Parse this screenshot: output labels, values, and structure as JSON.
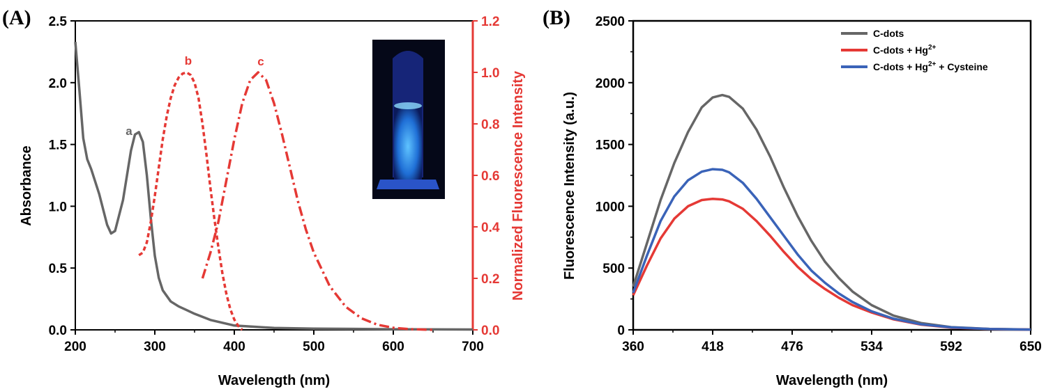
{
  "chart_data": [
    {
      "type": "line",
      "panel_label": "(A)",
      "xlabel": "Wavelength (nm)",
      "ylabel": "Absorbance",
      "y2label": "Normalized Fluorescence Intensity",
      "xlim": [
        200,
        700
      ],
      "ylim": [
        0,
        2.5
      ],
      "y2lim": [
        0,
        1.2
      ],
      "x_ticks": [
        "200",
        "300",
        "400",
        "500",
        "600",
        "700"
      ],
      "y_ticks": [
        "0.0",
        "0.5",
        "1.0",
        "1.5",
        "2.0",
        "2.5"
      ],
      "y2_ticks": [
        "0.0",
        "0.2",
        "0.4",
        "0.6",
        "0.8",
        "1.0",
        "1.2"
      ],
      "inset_image": "vial-fluorescing-blue",
      "series": [
        {
          "name": "a",
          "axis": "left",
          "color": "#666666",
          "style": "solid",
          "x": [
            200,
            205,
            210,
            215,
            220,
            230,
            240,
            245,
            250,
            260,
            270,
            275,
            280,
            285,
            290,
            295,
            300,
            305,
            310,
            320,
            330,
            340,
            350,
            370,
            400,
            450,
            500,
            600,
            700
          ],
          "y": [
            2.33,
            1.95,
            1.55,
            1.38,
            1.3,
            1.1,
            0.85,
            0.78,
            0.8,
            1.05,
            1.45,
            1.58,
            1.6,
            1.52,
            1.25,
            0.9,
            0.6,
            0.42,
            0.32,
            0.23,
            0.19,
            0.16,
            0.13,
            0.08,
            0.035,
            0.015,
            0.01,
            0.005,
            0.003
          ]
        },
        {
          "name": "b",
          "axis": "right",
          "color": "#e53935",
          "style": "dash",
          "x": [
            280,
            285,
            290,
            295,
            300,
            305,
            310,
            315,
            320,
            325,
            330,
            335,
            340,
            345,
            350,
            355,
            360,
            365,
            370,
            375,
            380,
            385,
            390,
            395,
            400,
            405,
            410
          ],
          "y": [
            0.29,
            0.3,
            0.34,
            0.42,
            0.52,
            0.63,
            0.74,
            0.83,
            0.9,
            0.95,
            0.98,
            0.995,
            1.0,
            0.99,
            0.96,
            0.9,
            0.8,
            0.68,
            0.55,
            0.43,
            0.32,
            0.22,
            0.14,
            0.08,
            0.04,
            0.015,
            0.0
          ]
        },
        {
          "name": "c",
          "axis": "right",
          "color": "#e53935",
          "style": "dashdot",
          "x": [
            360,
            370,
            380,
            390,
            400,
            410,
            420,
            430,
            440,
            450,
            460,
            470,
            480,
            490,
            500,
            520,
            540,
            560,
            580,
            600,
            620,
            650
          ],
          "y": [
            0.2,
            0.3,
            0.42,
            0.58,
            0.74,
            0.88,
            0.97,
            1.0,
            0.97,
            0.88,
            0.76,
            0.63,
            0.5,
            0.39,
            0.3,
            0.17,
            0.09,
            0.045,
            0.02,
            0.008,
            0.003,
            0.0
          ]
        }
      ]
    },
    {
      "type": "line",
      "panel_label": "(B)",
      "xlabel": "Wavelength (nm)",
      "ylabel": "Fluorescence Intensity (a.u.)",
      "xlim": [
        360,
        650
      ],
      "ylim": [
        0,
        2500
      ],
      "x_ticks": [
        "360",
        "418",
        "476",
        "534",
        "592",
        "650"
      ],
      "y_ticks": [
        "0",
        "500",
        "1000",
        "1500",
        "2000",
        "2500"
      ],
      "legend_position": "top-right",
      "series": [
        {
          "name": "C-dots",
          "color": "#666666",
          "x": [
            360,
            370,
            380,
            390,
            400,
            410,
            418,
            425,
            430,
            440,
            450,
            460,
            470,
            480,
            490,
            500,
            510,
            520,
            534,
            550,
            570,
            592,
            620,
            650
          ],
          "y": [
            350,
            700,
            1050,
            1350,
            1600,
            1800,
            1880,
            1900,
            1885,
            1790,
            1620,
            1400,
            1150,
            920,
            720,
            550,
            420,
            310,
            200,
            115,
            55,
            22,
            8,
            3
          ]
        },
        {
          "name": "C-dots + Hg2+",
          "legend_main": "C-dots + Hg",
          "legend_sup": "2+",
          "color": "#e53935",
          "x": [
            360,
            370,
            380,
            390,
            400,
            410,
            418,
            425,
            430,
            440,
            450,
            460,
            470,
            480,
            490,
            500,
            510,
            520,
            534,
            550,
            570,
            592,
            620,
            650
          ],
          "y": [
            280,
            520,
            740,
            900,
            1000,
            1050,
            1060,
            1055,
            1040,
            980,
            880,
            760,
            630,
            510,
            410,
            330,
            260,
            200,
            140,
            85,
            42,
            18,
            6,
            2
          ]
        },
        {
          "name": "C-dots + Hg2+ + Cysteine",
          "legend_main": "C-dots + Hg",
          "legend_sup": "2+",
          "legend_tail": " + Cysteine",
          "color": "#3a63b8",
          "x": [
            360,
            370,
            380,
            390,
            400,
            410,
            418,
            425,
            430,
            440,
            450,
            460,
            470,
            480,
            490,
            500,
            510,
            520,
            534,
            550,
            570,
            592,
            620,
            650
          ],
          "y": [
            300,
            600,
            880,
            1080,
            1210,
            1280,
            1300,
            1295,
            1275,
            1190,
            1060,
            910,
            760,
            610,
            480,
            380,
            295,
            225,
            150,
            90,
            45,
            20,
            7,
            2
          ]
        }
      ]
    }
  ]
}
